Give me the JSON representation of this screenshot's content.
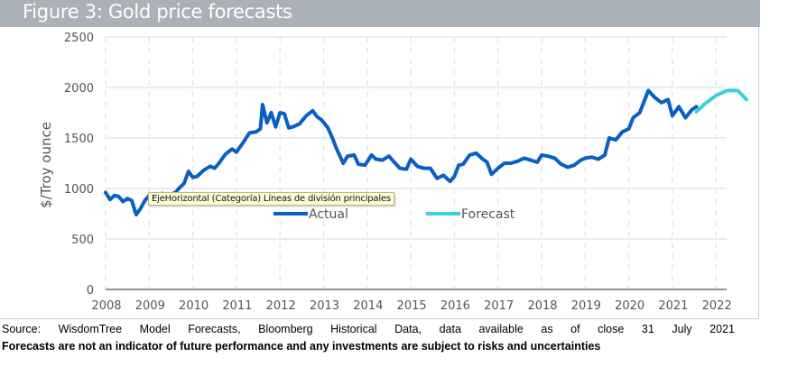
{
  "header": {
    "title": "Figure 3: Gold price forecasts"
  },
  "tooltip": {
    "text": "EjeHorizontal (Categoría)  Líneas de división principales"
  },
  "footer": {
    "source": "Source:  WisdomTree  Model  Forecasts,  Bloomberg  Historical  Data,  data  available  as  of  close  31  July  2021",
    "disclaimer": "Forecasts are not an indicator of future performance and any investments are subject to risks and uncertainties"
  },
  "colors": {
    "actual": "#0a5fc4",
    "forecast": "#3ccfdc",
    "header": "#aab1b8",
    "grid": "#e6e6e6",
    "axis_text": "#555555"
  },
  "chart_data": {
    "type": "line",
    "title": "Figure 3: Gold price forecasts",
    "xlabel": "",
    "ylabel": "$/Troy ounce",
    "ylim": [
      0,
      2500
    ],
    "xlim": [
      2008,
      2022.7
    ],
    "yticks": [
      0,
      500,
      1000,
      1500,
      2000,
      2500
    ],
    "xticks": [
      "2008",
      "2009",
      "2010",
      "2011",
      "2012",
      "2013",
      "2014",
      "2015",
      "2016",
      "2017",
      "2018",
      "2019",
      "2020",
      "2021",
      "2022"
    ],
    "grid": true,
    "legend": {
      "position": "center",
      "entries": [
        "Actual",
        "Forecast"
      ]
    },
    "series": [
      {
        "name": "Actual",
        "x": [
          2008.0,
          2008.1,
          2008.2,
          2008.3,
          2008.4,
          2008.5,
          2008.6,
          2008.7,
          2008.8,
          2008.9,
          2009.0,
          2009.15,
          2009.3,
          2009.45,
          2009.6,
          2009.7,
          2009.8,
          2009.9,
          2010.0,
          2010.1,
          2010.25,
          2010.4,
          2010.5,
          2010.6,
          2010.75,
          2010.9,
          2011.0,
          2011.15,
          2011.3,
          2011.45,
          2011.55,
          2011.6,
          2011.7,
          2011.8,
          2011.9,
          2012.0,
          2012.1,
          2012.2,
          2012.3,
          2012.45,
          2012.6,
          2012.75,
          2012.85,
          2012.95,
          2013.1,
          2013.2,
          2013.3,
          2013.45,
          2013.55,
          2013.7,
          2013.8,
          2013.95,
          2014.1,
          2014.2,
          2014.35,
          2014.5,
          2014.6,
          2014.75,
          2014.9,
          2015.0,
          2015.15,
          2015.3,
          2015.45,
          2015.6,
          2015.75,
          2015.9,
          2016.0,
          2016.1,
          2016.2,
          2016.35,
          2016.5,
          2016.65,
          2016.75,
          2016.85,
          2017.0,
          2017.15,
          2017.3,
          2017.45,
          2017.6,
          2017.75,
          2017.9,
          2018.0,
          2018.15,
          2018.3,
          2018.45,
          2018.6,
          2018.75,
          2018.9,
          2019.0,
          2019.15,
          2019.3,
          2019.45,
          2019.55,
          2019.7,
          2019.85,
          2020.0,
          2020.1,
          2020.25,
          2020.45,
          2020.6,
          2020.75,
          2020.9,
          2021.0,
          2021.15,
          2021.3,
          2021.45,
          2021.55
        ],
        "values": [
          960,
          890,
          930,
          920,
          870,
          900,
          880,
          740,
          800,
          880,
          930,
          900,
          950,
          930,
          960,
          1010,
          1050,
          1170,
          1110,
          1120,
          1180,
          1220,
          1200,
          1250,
          1340,
          1390,
          1360,
          1450,
          1550,
          1560,
          1590,
          1830,
          1650,
          1750,
          1610,
          1750,
          1740,
          1600,
          1610,
          1640,
          1720,
          1770,
          1710,
          1680,
          1600,
          1500,
          1390,
          1250,
          1320,
          1330,
          1240,
          1230,
          1330,
          1290,
          1280,
          1320,
          1270,
          1200,
          1190,
          1290,
          1220,
          1200,
          1200,
          1100,
          1130,
          1070,
          1120,
          1230,
          1240,
          1330,
          1350,
          1290,
          1260,
          1140,
          1200,
          1250,
          1250,
          1270,
          1300,
          1280,
          1260,
          1330,
          1320,
          1300,
          1240,
          1210,
          1230,
          1280,
          1300,
          1310,
          1290,
          1330,
          1500,
          1480,
          1560,
          1590,
          1700,
          1750,
          1970,
          1900,
          1850,
          1880,
          1720,
          1810,
          1700,
          1780,
          1810
        ]
      },
      {
        "name": "Forecast",
        "x": [
          2021.55,
          2021.75,
          2022.0,
          2022.25,
          2022.5,
          2022.7
        ],
        "values": [
          1760,
          1840,
          1920,
          1970,
          1970,
          1880
        ]
      }
    ]
  }
}
